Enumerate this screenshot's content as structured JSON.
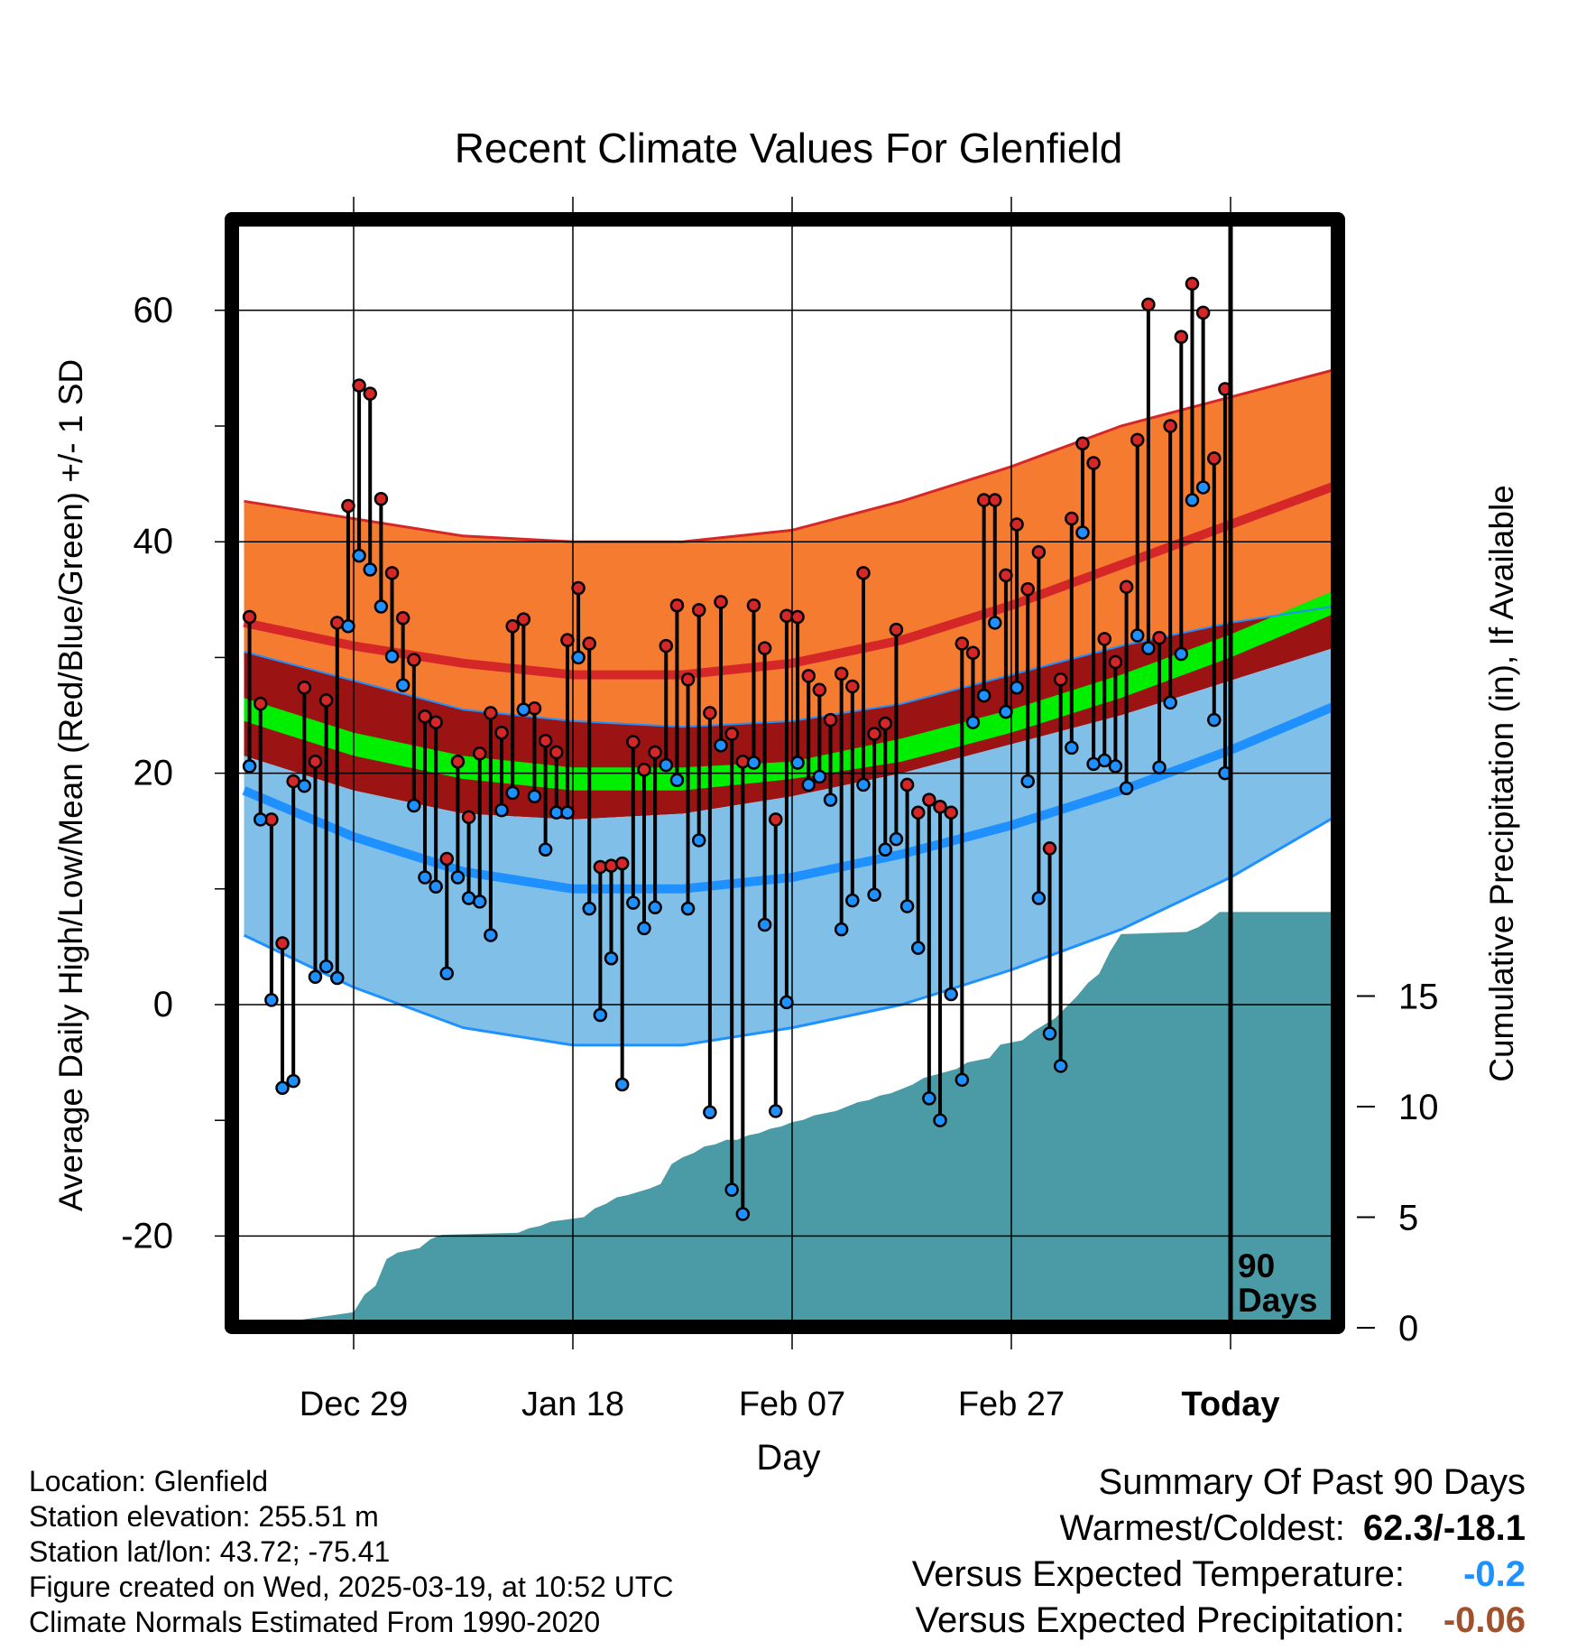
{
  "chart_data": {
    "type": "line",
    "title": "Recent Climate Values For Glenfield",
    "xlabel": "Day",
    "ylabel": "Average Daily High/Low/Mean (Red/Blue/Green) +/- 1 SD",
    "y2label": "Cumulative Precipitation (in), If Available",
    "ylim": [
      -28,
      68
    ],
    "y2lim": [
      0,
      48
    ],
    "xlim": [
      -10.5,
      89.5
    ],
    "x_tick_labels": [
      "Dec 29",
      "Jan 18",
      "Feb 07",
      "Feb 27",
      "Today"
    ],
    "x_tick_days": [
      0,
      20,
      40,
      60,
      80
    ],
    "y_ticks": [
      60,
      40,
      20,
      0,
      -20
    ],
    "y2_ticks": [
      15,
      10,
      5,
      0
    ],
    "grid": true,
    "period_label": "90 Days",
    "normals": {
      "days": [
        -10,
        0,
        10,
        20,
        30,
        40,
        50,
        60,
        70,
        80,
        90
      ],
      "high_mean": [
        33.0,
        31.0,
        29.5,
        28.5,
        28.5,
        29.5,
        31.5,
        34.5,
        38.0,
        41.5,
        45.0
      ],
      "high_sd_upper": [
        43.5,
        42.0,
        40.5,
        40.0,
        40.0,
        41.0,
        43.5,
        46.5,
        50.0,
        52.5,
        55.0
      ],
      "low_mean": [
        18.5,
        14.5,
        11.5,
        10.0,
        10.0,
        11.0,
        13.0,
        15.5,
        18.5,
        22.0,
        26.0
      ],
      "low_sd_lower": [
        6.0,
        1.5,
        -2.0,
        -3.5,
        -3.5,
        -2.0,
        0.0,
        3.0,
        6.5,
        11.0,
        16.5
      ],
      "mean_upper": [
        26.5,
        23.5,
        21.5,
        20.5,
        20.5,
        21.0,
        23.0,
        25.5,
        28.5,
        32.0,
        36.0
      ],
      "mean_lower": [
        24.5,
        21.5,
        19.5,
        18.5,
        18.5,
        19.5,
        21.0,
        23.5,
        26.5,
        30.0,
        34.0
      ],
      "mean_sd_upper": [
        30.5,
        28.0,
        25.5,
        24.5,
        24.0,
        24.5,
        26.0,
        28.5,
        31.0,
        33.0,
        34.5
      ],
      "mean_sd_lower": [
        21.5,
        18.5,
        16.5,
        16.0,
        16.5,
        18.0,
        20.0,
        22.5,
        25.0,
        28.0,
        31.0
      ]
    },
    "series": [
      {
        "name": "High",
        "color": "#d62728",
        "values": [
          33.5,
          26.0,
          16.0,
          5.3,
          19.3,
          27.4,
          21.0,
          26.3,
          33.0,
          43.1,
          53.5,
          52.8,
          43.7,
          37.3,
          33.4,
          29.8,
          24.9,
          24.4,
          12.6,
          21.0,
          16.2,
          21.7,
          25.2,
          23.5,
          32.7,
          33.3,
          25.6,
          22.8,
          21.8,
          31.5,
          36.0,
          31.2,
          11.9,
          12.0,
          12.2,
          22.7,
          20.3,
          21.8,
          31.0,
          34.5,
          28.1,
          34.1,
          25.2,
          34.8,
          23.4,
          21.0,
          34.5,
          30.8,
          16.0,
          33.6,
          33.5,
          28.4,
          27.2,
          24.6,
          28.6,
          27.5,
          37.3,
          23.4,
          24.3,
          32.4,
          19.0,
          16.6,
          17.7,
          17.1,
          16.6,
          31.2,
          30.4,
          43.6,
          43.6,
          37.1,
          41.5,
          35.9,
          39.1,
          13.5,
          28.1,
          42.0,
          48.5,
          46.8,
          31.6,
          29.6,
          36.1,
          48.8,
          60.5,
          31.7,
          50.0,
          57.7,
          62.3,
          59.8,
          47.2,
          53.2
        ]
      },
      {
        "name": "Low",
        "color": "#1e90ff",
        "values": [
          20.6,
          16.0,
          0.4,
          -7.2,
          -6.6,
          18.9,
          2.4,
          3.3,
          2.3,
          32.7,
          38.8,
          37.6,
          34.4,
          30.1,
          27.6,
          17.2,
          11.0,
          10.2,
          2.7,
          11.0,
          9.2,
          8.9,
          6.0,
          16.8,
          18.3,
          25.5,
          18.0,
          13.4,
          16.6,
          16.6,
          30.0,
          8.3,
          -0.9,
          4.0,
          -6.9,
          8.8,
          6.6,
          8.4,
          20.7,
          19.4,
          8.3,
          14.2,
          -9.3,
          22.4,
          -16.0,
          -18.1,
          20.9,
          6.9,
          -9.2,
          0.2,
          20.9,
          19.0,
          19.7,
          17.7,
          6.5,
          9.0,
          19.0,
          9.5,
          13.4,
          14.3,
          8.5,
          4.9,
          -8.1,
          -10.0,
          0.9,
          -6.5,
          24.4,
          26.7,
          33.0,
          25.3,
          27.4,
          19.3,
          9.2,
          -2.5,
          -5.3,
          22.2,
          40.8,
          20.8,
          21.1,
          20.6,
          18.7,
          31.9,
          30.8,
          20.5,
          26.1,
          30.3,
          43.6,
          44.7,
          24.6,
          20.0
        ]
      }
    ],
    "precip": {
      "name": "Cumulative Precipitation",
      "color": "#4a9ba5",
      "days": [
        -10,
        0,
        1,
        2,
        3,
        4,
        6,
        7,
        8,
        15,
        16,
        17,
        18,
        21,
        22,
        23,
        24,
        25,
        27,
        28,
        29,
        30,
        31,
        32,
        33,
        34,
        35,
        36,
        37,
        38,
        39,
        40,
        41,
        42,
        43,
        44,
        45,
        46,
        47,
        48,
        49,
        50,
        51,
        52,
        55,
        56,
        58,
        59,
        61,
        62,
        63,
        64,
        65,
        66,
        67,
        68,
        69,
        70,
        76,
        77,
        78,
        79,
        89
      ],
      "values": [
        0.0,
        0.4,
        0.8,
        1.0,
        1.8,
        2.0,
        2.1,
        2.3,
        2.4,
        2.5,
        2.6,
        2.7,
        2.8,
        3.0,
        3.2,
        3.3,
        3.5,
        3.6,
        3.8,
        4.0,
        4.6,
        4.8,
        5.0,
        5.2,
        5.3,
        5.5,
        5.5,
        5.7,
        5.8,
        6.0,
        6.1,
        6.3,
        6.4,
        6.6,
        6.7,
        6.8,
        7.0,
        7.2,
        7.3,
        7.5,
        7.6,
        7.8,
        8.0,
        8.3,
        8.7,
        9.0,
        9.2,
        9.8,
        10.0,
        10.4,
        10.7,
        11.0,
        11.5,
        12.0,
        12.6,
        13.0,
        14.0,
        14.8,
        14.9,
        15.1,
        15.4,
        15.8,
        15.8
      ],
      "right_axis_values": [
        0,
        0.7,
        1.5,
        1.9,
        3.1,
        3.4,
        3.6,
        4.0,
        4.2,
        4.3,
        4.5,
        4.6,
        4.8,
        5.0,
        5.4,
        5.6,
        5.9,
        6.0,
        6.3,
        6.5,
        7.4,
        7.7,
        7.9,
        8.2,
        8.3,
        8.5,
        8.5,
        8.7,
        8.8,
        9.0,
        9.1,
        9.3,
        9.4,
        9.6,
        9.7,
        9.8,
        10.0,
        10.2,
        10.3,
        10.5,
        10.6,
        10.8,
        11.0,
        11.3,
        11.7,
        12.0,
        12.2,
        12.8,
        13.0,
        13.4,
        13.7,
        14.0,
        14.5,
        15.0,
        15.6,
        16.0,
        17.0,
        17.8,
        17.9,
        18.1,
        18.4,
        18.8,
        18.8
      ]
    }
  },
  "footer": {
    "location": "Location: Glenfield",
    "elevation": "Station elevation: 255.51 m",
    "latlon": "Station lat/lon: 43.72; -75.41",
    "created": "Figure created on Wed, 2025-03-19, at 10:52 UTC",
    "normals": "Climate Normals Estimated From 1990-2020"
  },
  "summary": {
    "heading": "Summary Of Past 90 Days",
    "warmest_label": "Warmest/Coldest:",
    "warmest_value": "62.3/-18.1",
    "temp_label": "Versus Expected Temperature:",
    "temp_value": "-0.2",
    "precip_label": "Versus Expected Precipitation:",
    "precip_value": "-0.06",
    "temp_color": "#1e90ff",
    "precip_color": "#a0522d"
  }
}
